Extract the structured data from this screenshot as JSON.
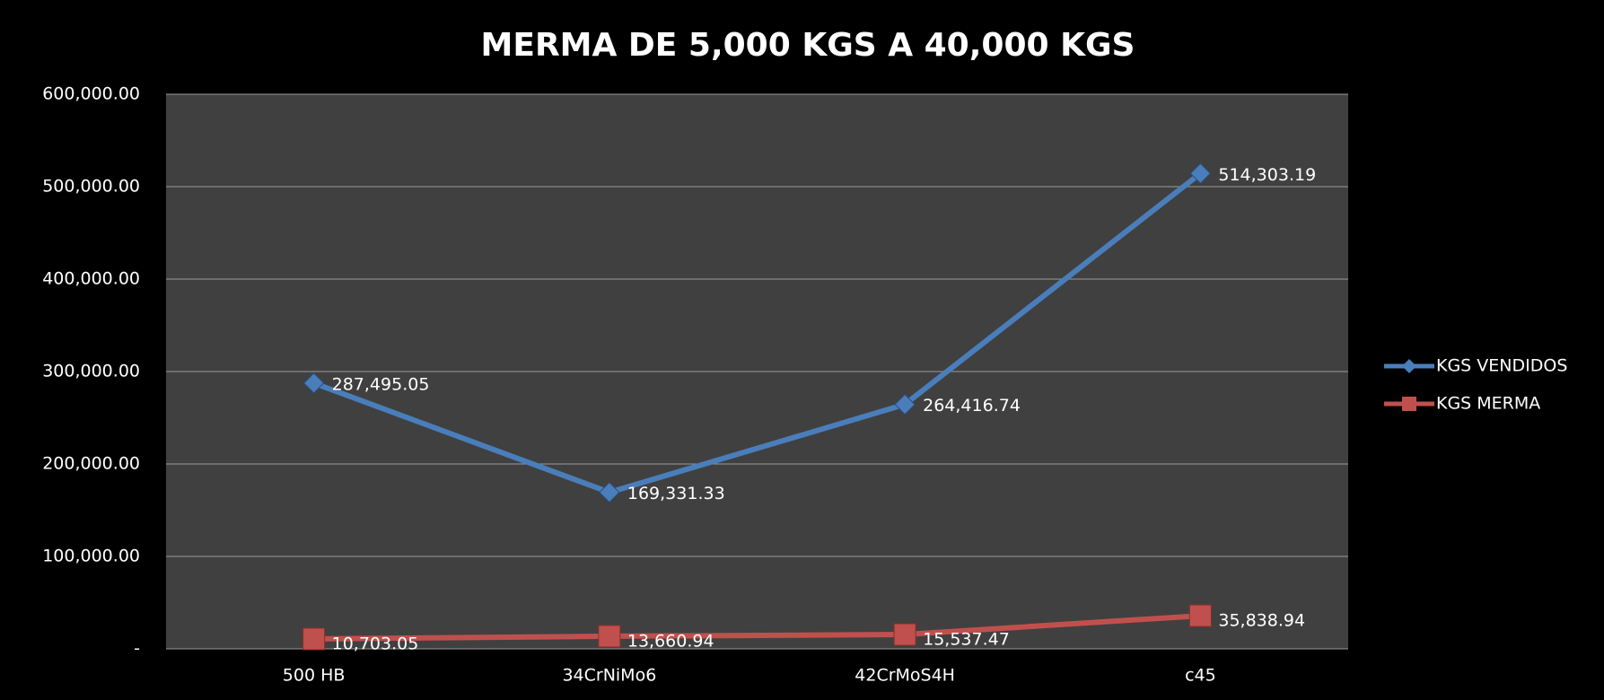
{
  "chart_data": {
    "type": "line",
    "title": "MERMA DE 5,000 KGS A 40,000 KGS",
    "categories": [
      "500 HB",
      "34CrNiMo6",
      "42CrMoS4H",
      "c45"
    ],
    "series": [
      {
        "name": "KGS VENDIDOS",
        "color": "#4a7ebb",
        "marker": "diamond",
        "values": [
          287495.05,
          169331.33,
          264416.74,
          514303.19
        ],
        "value_labels": [
          "287,495.05",
          "169,331.33",
          "264,416.74",
          "514,303.19"
        ]
      },
      {
        "name": "KGS MERMA",
        "color": "#c0504d",
        "marker": "square",
        "values": [
          10703.05,
          13660.94,
          15537.47,
          35838.94
        ],
        "value_labels": [
          "10,703.05",
          "13,660.94",
          "15,537.47",
          "35,838.94"
        ]
      }
    ],
    "ylim": [
      0,
      600000
    ],
    "yticks": [
      {
        "value": 0,
        "label": "-"
      },
      {
        "value": 100000,
        "label": "100,000.00"
      },
      {
        "value": 200000,
        "label": "200,000.00"
      },
      {
        "value": 300000,
        "label": "300,000.00"
      },
      {
        "value": 400000,
        "label": "400,000.00"
      },
      {
        "value": 500000,
        "label": "500,000.00"
      },
      {
        "value": 600000,
        "label": "600,000.00"
      }
    ],
    "grid": true,
    "legend": "right"
  }
}
